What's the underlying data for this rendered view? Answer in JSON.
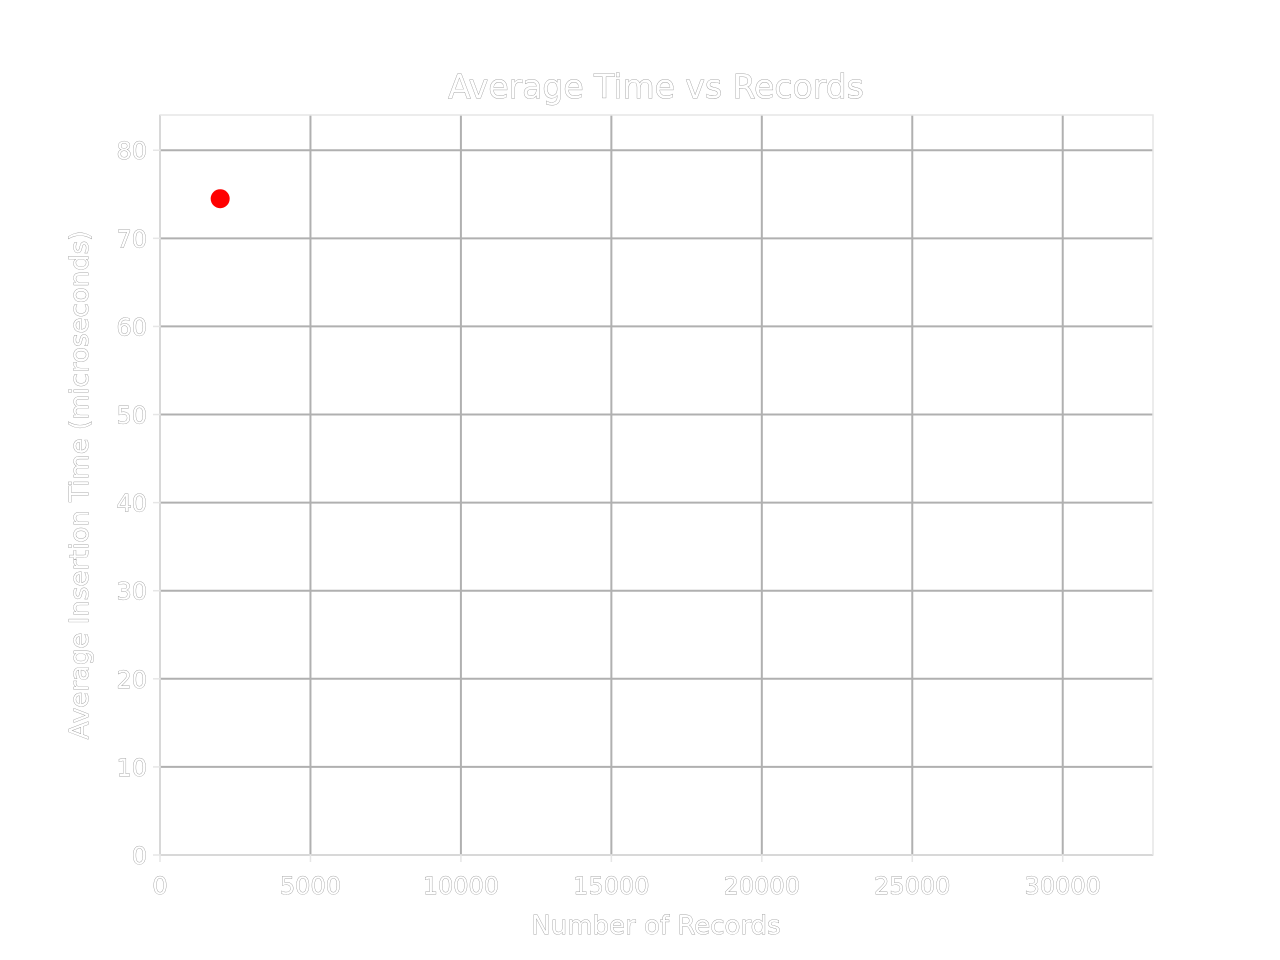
{
  "chart_data": {
    "type": "scatter",
    "title": "Average Time vs Records",
    "xlabel": "Number of Records",
    "ylabel": "Average Insertion Time (microseconds)",
    "xlim": [
      0,
      33000
    ],
    "ylim": [
      0,
      84
    ],
    "xticks": [
      0,
      5000,
      10000,
      15000,
      20000,
      25000,
      30000
    ],
    "yticks": [
      0,
      10,
      20,
      30,
      40,
      50,
      60,
      70,
      80
    ],
    "grid": true,
    "point_color": "#ff0000",
    "points": [
      {
        "x": 2000,
        "y": 74.5
      }
    ]
  }
}
